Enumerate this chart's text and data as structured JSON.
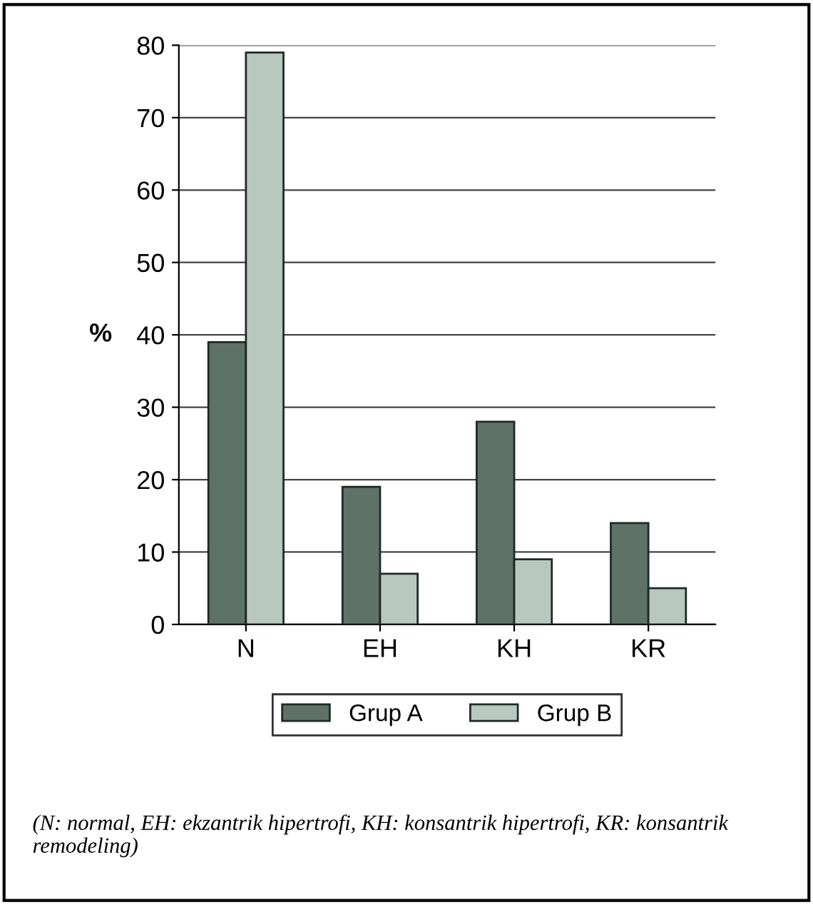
{
  "chart_data": {
    "type": "bar",
    "ylabel": "%",
    "categories": [
      "N",
      "EH",
      "KH",
      "KR"
    ],
    "series": [
      {
        "name": "Grup A",
        "color": "#5f7268",
        "values": [
          39,
          19,
          28,
          14
        ]
      },
      {
        "name": "Grup B",
        "color": "#b9c8be",
        "values": [
          79,
          7,
          9,
          5
        ]
      }
    ],
    "ylim": [
      0,
      80
    ],
    "yticks": [
      0,
      10,
      20,
      30,
      40,
      50,
      60,
      70,
      80
    ],
    "grid": "y",
    "legend": "bottom",
    "annotations": [
      "(N: normal, EH: ekzantrik hipertrofi, KH: konsantrik hipertrofi, KR: konsantrik remodeling)"
    ]
  }
}
